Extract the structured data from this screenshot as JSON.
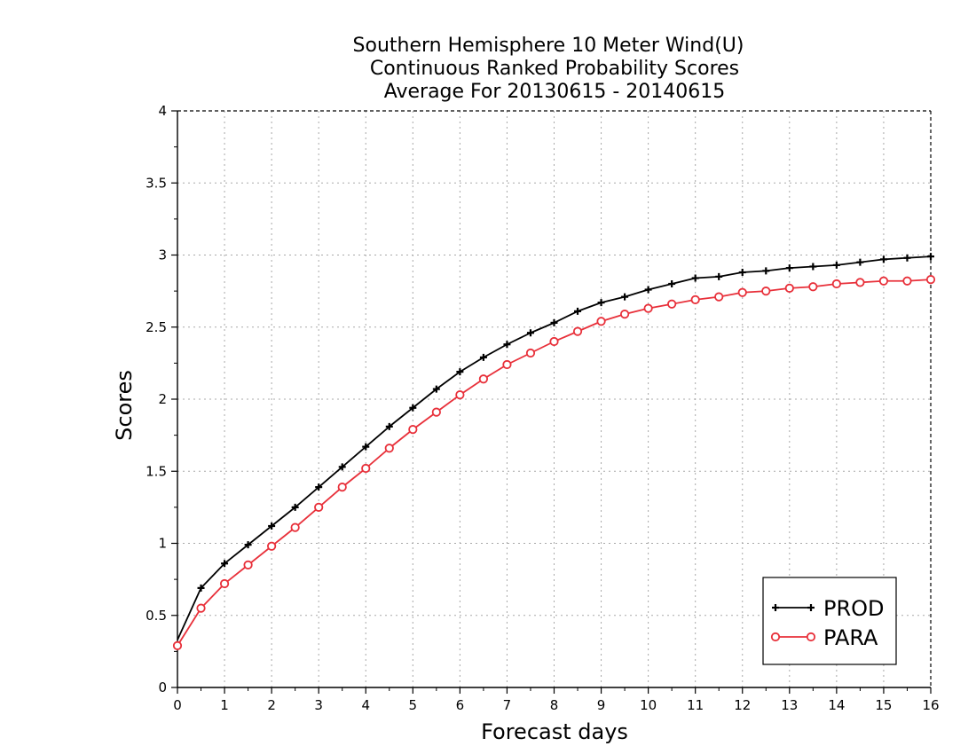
{
  "chart_data": {
    "type": "line",
    "title_lines": [
      "Southern Hemisphere 10 Meter Wind(U)",
      "Continuous Ranked Probability Scores",
      "Average For 20130615 - 20140615"
    ],
    "xlabel": "Forecast days",
    "ylabel": "Scores",
    "xlim": [
      0,
      16
    ],
    "ylim": [
      0,
      4
    ],
    "x_ticks": [
      0,
      1,
      2,
      3,
      4,
      5,
      6,
      7,
      8,
      9,
      10,
      11,
      12,
      13,
      14,
      15,
      16
    ],
    "x_tick_labels": [
      "0",
      "1",
      "2",
      "3",
      "4",
      "5",
      "6",
      "7",
      "8",
      "9",
      "10",
      "11",
      "12",
      "13",
      "14",
      "15",
      "16"
    ],
    "y_ticks": [
      0,
      0.5,
      1,
      1.5,
      2,
      2.5,
      3,
      3.5,
      4
    ],
    "y_tick_labels": [
      "0",
      "0.5",
      "1",
      "1.5",
      "2",
      "2.5",
      "3",
      "3.5",
      "4"
    ],
    "grid": true,
    "legend_position": "bottom-right",
    "x": [
      0,
      0.5,
      1,
      1.5,
      2,
      2.5,
      3,
      3.5,
      4,
      4.5,
      5,
      5.5,
      6,
      6.5,
      7,
      7.5,
      8,
      8.5,
      9,
      9.5,
      10,
      10.5,
      11,
      11.5,
      12,
      12.5,
      13,
      13.5,
      14,
      14.5,
      15,
      15.5,
      16
    ],
    "series": [
      {
        "name": "PROD",
        "color": "#000000",
        "marker": "plus",
        "values": [
          0.33,
          0.69,
          0.86,
          0.99,
          1.12,
          1.25,
          1.39,
          1.53,
          1.67,
          1.81,
          1.94,
          2.07,
          2.19,
          2.29,
          2.38,
          2.46,
          2.53,
          2.61,
          2.67,
          2.71,
          2.76,
          2.8,
          2.84,
          2.85,
          2.88,
          2.89,
          2.91,
          2.92,
          2.93,
          2.95,
          2.97,
          2.98,
          2.99
        ]
      },
      {
        "name": "PARA",
        "color": "#e8303a",
        "marker": "circle",
        "values": [
          0.29,
          0.55,
          0.72,
          0.85,
          0.98,
          1.11,
          1.25,
          1.39,
          1.52,
          1.66,
          1.79,
          1.91,
          2.03,
          2.14,
          2.24,
          2.32,
          2.4,
          2.47,
          2.54,
          2.59,
          2.63,
          2.66,
          2.69,
          2.71,
          2.74,
          2.75,
          2.77,
          2.78,
          2.8,
          2.81,
          2.82,
          2.82,
          2.83
        ]
      }
    ]
  }
}
